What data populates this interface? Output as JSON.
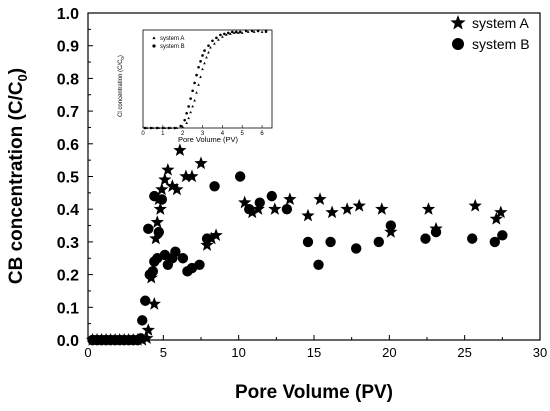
{
  "chart_data": [
    {
      "type": "scatter",
      "xlabel": "Pore Volume (PV)",
      "ylabel_main": "CB concentration (C/C",
      "ylabel_sub": "0",
      "ylabel_close": ")",
      "xlim": [
        0,
        30
      ],
      "ylim": [
        0,
        1.0
      ],
      "xticks": [
        "0",
        "5",
        "10",
        "15",
        "20",
        "25",
        "30"
      ],
      "yticks": [
        "0.0",
        "0.1",
        "0.2",
        "0.3",
        "0.4",
        "0.5",
        "0.6",
        "0.7",
        "0.8",
        "0.9",
        "1.0"
      ],
      "legend": "top-right",
      "series": [
        {
          "name": "system A",
          "marker": "star",
          "points": [
            [
              0.3,
              0.0
            ],
            [
              0.6,
              0.0
            ],
            [
              0.9,
              0.0
            ],
            [
              1.2,
              0.0
            ],
            [
              1.5,
              0.0
            ],
            [
              1.8,
              0.0
            ],
            [
              2.1,
              0.0
            ],
            [
              2.4,
              0.0
            ],
            [
              2.7,
              0.0
            ],
            [
              3.0,
              0.0
            ],
            [
              3.3,
              0.0
            ],
            [
              3.6,
              0.0
            ],
            [
              3.9,
              0.005
            ],
            [
              4.0,
              0.03
            ],
            [
              4.2,
              0.19
            ],
            [
              4.4,
              0.11
            ],
            [
              4.5,
              0.31
            ],
            [
              4.6,
              0.36
            ],
            [
              4.7,
              0.43
            ],
            [
              4.8,
              0.4
            ],
            [
              4.9,
              0.46
            ],
            [
              5.1,
              0.49
            ],
            [
              5.3,
              0.52
            ],
            [
              5.6,
              0.47
            ],
            [
              5.9,
              0.46
            ],
            [
              6.1,
              0.58
            ],
            [
              6.5,
              0.5
            ],
            [
              6.9,
              0.5
            ],
            [
              7.5,
              0.54
            ],
            [
              7.9,
              0.29
            ],
            [
              8.2,
              0.31
            ],
            [
              8.5,
              0.32
            ],
            [
              10.4,
              0.42
            ],
            [
              10.9,
              0.39
            ],
            [
              11.3,
              0.4
            ],
            [
              12.4,
              0.4
            ],
            [
              13.4,
              0.43
            ],
            [
              14.6,
              0.38
            ],
            [
              15.4,
              0.43
            ],
            [
              16.2,
              0.39
            ],
            [
              17.2,
              0.4
            ],
            [
              18.0,
              0.41
            ],
            [
              19.5,
              0.4
            ],
            [
              20.1,
              0.33
            ],
            [
              22.6,
              0.4
            ],
            [
              23.1,
              0.34
            ],
            [
              25.7,
              0.41
            ],
            [
              27.1,
              0.37
            ],
            [
              27.4,
              0.39
            ]
          ]
        },
        {
          "name": "system B",
          "marker": "circle",
          "points": [
            [
              0.3,
              0.0
            ],
            [
              0.6,
              0.0
            ],
            [
              0.9,
              0.0
            ],
            [
              1.2,
              0.0
            ],
            [
              1.5,
              0.0
            ],
            [
              1.8,
              0.0
            ],
            [
              2.1,
              0.0
            ],
            [
              2.4,
              0.0
            ],
            [
              2.7,
              0.0
            ],
            [
              3.0,
              0.0
            ],
            [
              3.3,
              0.0
            ],
            [
              3.5,
              0.005
            ],
            [
              3.6,
              0.06
            ],
            [
              3.8,
              0.12
            ],
            [
              4.0,
              0.34
            ],
            [
              4.1,
              0.2
            ],
            [
              4.3,
              0.21
            ],
            [
              4.4,
              0.24
            ],
            [
              4.4,
              0.44
            ],
            [
              4.6,
              0.25
            ],
            [
              4.7,
              0.33
            ],
            [
              4.9,
              0.43
            ],
            [
              5.1,
              0.26
            ],
            [
              5.3,
              0.23
            ],
            [
              5.6,
              0.25
            ],
            [
              5.8,
              0.27
            ],
            [
              6.3,
              0.25
            ],
            [
              6.6,
              0.21
            ],
            [
              6.9,
              0.22
            ],
            [
              7.4,
              0.23
            ],
            [
              7.9,
              0.31
            ],
            [
              8.4,
              0.47
            ],
            [
              10.1,
              0.5
            ],
            [
              10.7,
              0.4
            ],
            [
              11.4,
              0.42
            ],
            [
              12.2,
              0.44
            ],
            [
              13.2,
              0.4
            ],
            [
              14.6,
              0.3
            ],
            [
              15.3,
              0.23
            ],
            [
              16.1,
              0.3
            ],
            [
              17.8,
              0.28
            ],
            [
              19.3,
              0.3
            ],
            [
              20.1,
              0.35
            ],
            [
              22.4,
              0.31
            ],
            [
              23.1,
              0.33
            ],
            [
              25.5,
              0.31
            ],
            [
              27.0,
              0.3
            ],
            [
              27.5,
              0.32
            ]
          ]
        }
      ]
    },
    {
      "type": "scatter",
      "xlabel": "Pore Volume (PV)",
      "ylabel": "Cl concentration (C/C",
      "ylabel_sub": "0",
      "ylabel_close": ")",
      "xlim": [
        0,
        6.5
      ],
      "ylim": [
        0,
        1.0
      ],
      "xticks": [
        "0",
        "1",
        "2",
        "3",
        "4",
        "5",
        "6"
      ],
      "legend": "top-left",
      "series": [
        {
          "name": "system A",
          "marker": "triangle",
          "points": [
            [
              0.2,
              0.0
            ],
            [
              0.5,
              0.0
            ],
            [
              0.8,
              0.0
            ],
            [
              1.1,
              0.0
            ],
            [
              1.4,
              0.0
            ],
            [
              1.7,
              0.0
            ],
            [
              2.0,
              0.01
            ],
            [
              2.2,
              0.05
            ],
            [
              2.3,
              0.1
            ],
            [
              2.4,
              0.16
            ],
            [
              2.5,
              0.22
            ],
            [
              2.6,
              0.28
            ],
            [
              2.7,
              0.36
            ],
            [
              2.8,
              0.44
            ],
            [
              2.9,
              0.52
            ],
            [
              3.0,
              0.6
            ],
            [
              3.1,
              0.66
            ],
            [
              3.2,
              0.72
            ],
            [
              3.3,
              0.77
            ],
            [
              3.4,
              0.82
            ],
            [
              3.6,
              0.86
            ],
            [
              3.8,
              0.9
            ],
            [
              4.0,
              0.93
            ],
            [
              4.2,
              0.95
            ],
            [
              4.4,
              0.96
            ],
            [
              4.6,
              0.97
            ],
            [
              4.8,
              0.97
            ],
            [
              5.0,
              0.97
            ],
            [
              5.3,
              0.98
            ],
            [
              5.6,
              0.98
            ],
            [
              6.0,
              0.98
            ],
            [
              6.2,
              0.98
            ]
          ]
        },
        {
          "name": "system B",
          "marker": "circle",
          "points": [
            [
              0.1,
              0.0
            ],
            [
              0.4,
              0.0
            ],
            [
              0.7,
              0.0
            ],
            [
              1.0,
              0.0
            ],
            [
              1.3,
              0.0
            ],
            [
              1.6,
              0.0
            ],
            [
              1.9,
              0.02
            ],
            [
              2.1,
              0.08
            ],
            [
              2.2,
              0.15
            ],
            [
              2.3,
              0.22
            ],
            [
              2.4,
              0.3
            ],
            [
              2.5,
              0.38
            ],
            [
              2.6,
              0.46
            ],
            [
              2.7,
              0.54
            ],
            [
              2.8,
              0.62
            ],
            [
              2.9,
              0.68
            ],
            [
              3.0,
              0.74
            ],
            [
              3.1,
              0.79
            ],
            [
              3.3,
              0.84
            ],
            [
              3.5,
              0.89
            ],
            [
              3.7,
              0.92
            ],
            [
              3.9,
              0.95
            ],
            [
              4.1,
              0.96
            ],
            [
              4.3,
              0.97
            ],
            [
              4.5,
              0.98
            ],
            [
              4.7,
              0.98
            ],
            [
              4.9,
              0.98
            ],
            [
              5.2,
              0.99
            ],
            [
              5.5,
              0.99
            ],
            [
              5.8,
              0.99
            ],
            [
              6.2,
              0.99
            ]
          ]
        }
      ]
    }
  ]
}
